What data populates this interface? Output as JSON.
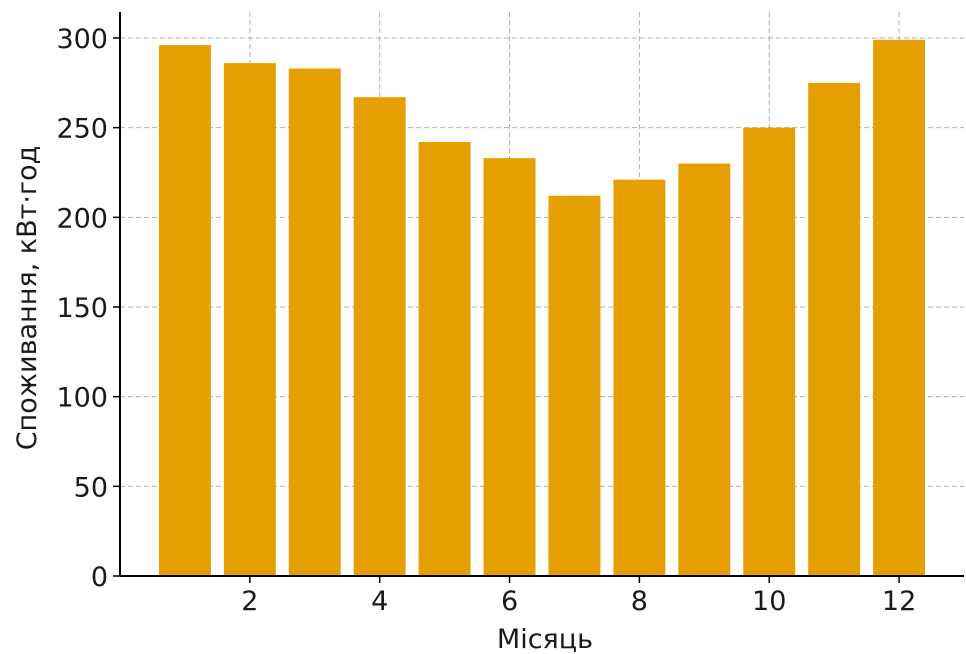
{
  "chart_data": {
    "type": "bar",
    "xlabel": "Місяць",
    "ylabel": "Споживання, кВт·год",
    "x": [
      1,
      2,
      3,
      4,
      5,
      6,
      7,
      8,
      9,
      10,
      11,
      12
    ],
    "values": [
      296,
      286,
      283,
      267,
      242,
      233,
      212,
      221,
      230,
      250,
      275,
      299
    ],
    "xlim": [
      0,
      13
    ],
    "ylim": [
      0,
      300
    ],
    "xticks": [
      2,
      4,
      6,
      8,
      10,
      12
    ],
    "yticks": [
      0,
      50,
      100,
      150,
      200,
      250,
      300
    ],
    "bar_color": "#e69f00",
    "grid": true,
    "legend": false
  }
}
